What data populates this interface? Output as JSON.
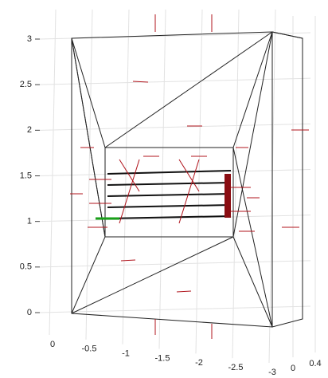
{
  "chart_data": {
    "type": "mesh3d",
    "xlim": [
      0,
      -3
    ],
    "xticks": [
      0,
      -0.5,
      -1,
      -1.5,
      -2,
      -2.5,
      -3
    ],
    "ylim": [
      0,
      3
    ],
    "yticks": [
      0,
      0.5,
      1,
      1.5,
      2,
      2.5,
      3
    ],
    "zlim": [
      0,
      0.4
    ],
    "zticks": [
      0,
      0.4
    ],
    "grid": true
  }
}
